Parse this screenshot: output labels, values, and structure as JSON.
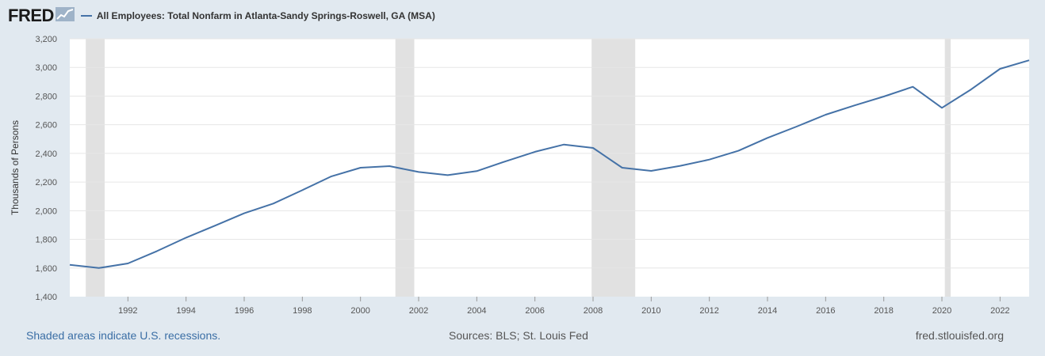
{
  "header": {
    "logo_text": "FRED",
    "logo_icon": "fred-chart-icon",
    "series_title": "All Employees: Total Nonfarm in Atlanta-Sandy Springs-Roswell, GA (MSA)"
  },
  "footer": {
    "recession_note": "Shaded areas indicate U.S. recessions.",
    "sources": "Sources: BLS; St. Louis Fed",
    "site": "fred.stlouisfed.org"
  },
  "colors": {
    "line": "#4572a7",
    "recession": "#e1e1e1",
    "background": "#e1e9f0",
    "plot": "#ffffff"
  },
  "chart_data": {
    "type": "line",
    "ylabel": "Thousands of Persons",
    "xlabel": "",
    "ylim": [
      1400,
      3200
    ],
    "yticks": [
      1400,
      1600,
      1800,
      2000,
      2200,
      2400,
      2600,
      2800,
      3000,
      3200
    ],
    "ytick_labels": [
      "1,400",
      "1,600",
      "1,800",
      "2,000",
      "2,200",
      "2,400",
      "2,600",
      "2,800",
      "3,000",
      "3,200"
    ],
    "xlim": [
      1990,
      2023
    ],
    "xticks": [
      1992,
      1994,
      1996,
      1998,
      2000,
      2002,
      2004,
      2006,
      2008,
      2010,
      2012,
      2014,
      2016,
      2018,
      2020,
      2022
    ],
    "grid": true,
    "recessions": [
      [
        1990.55,
        1991.2
      ],
      [
        2001.2,
        2001.85
      ],
      [
        2007.95,
        2009.45
      ],
      [
        2020.1,
        2020.3
      ]
    ],
    "series": [
      {
        "name": "All Employees: Total Nonfarm in Atlanta-Sandy Springs-Roswell, GA (MSA)",
        "x": [
          1990,
          1991,
          1992,
          1993,
          1994,
          1995,
          1996,
          1997,
          1998,
          1999,
          2000,
          2001,
          2002,
          2003,
          2004,
          2005,
          2006,
          2007,
          2008,
          2009,
          2010,
          2011,
          2012,
          2013,
          2014,
          2015,
          2016,
          2017,
          2018,
          2019,
          2020,
          2021,
          2022,
          2023
        ],
        "y": [
          1622,
          1600,
          1632,
          1718,
          1812,
          1896,
          1982,
          2050,
          2143,
          2240,
          2300,
          2311,
          2270,
          2248,
          2276,
          2345,
          2411,
          2462,
          2438,
          2300,
          2278,
          2313,
          2357,
          2418,
          2508,
          2587,
          2670,
          2735,
          2797,
          2865,
          2718,
          2846,
          2990,
          3050
        ]
      }
    ]
  }
}
